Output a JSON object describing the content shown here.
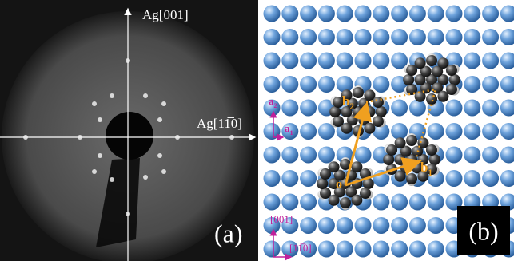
{
  "panel_a": {
    "axis_vertical": "Ag[001]",
    "axis_horizontal": "Ag[11̅0]",
    "label": "(a)"
  },
  "panel_b": {
    "a2": {
      "base": "a",
      "sub": "2"
    },
    "a1": {
      "base": "a",
      "sub": "1"
    },
    "b2": {
      "base": "b",
      "sub": "2"
    },
    "b1": {
      "base": "b",
      "sub": "1"
    },
    "origin": "o",
    "dir_vertical": "[001]",
    "dir_horizontal": "[11̅0]",
    "label": "(b)"
  }
}
